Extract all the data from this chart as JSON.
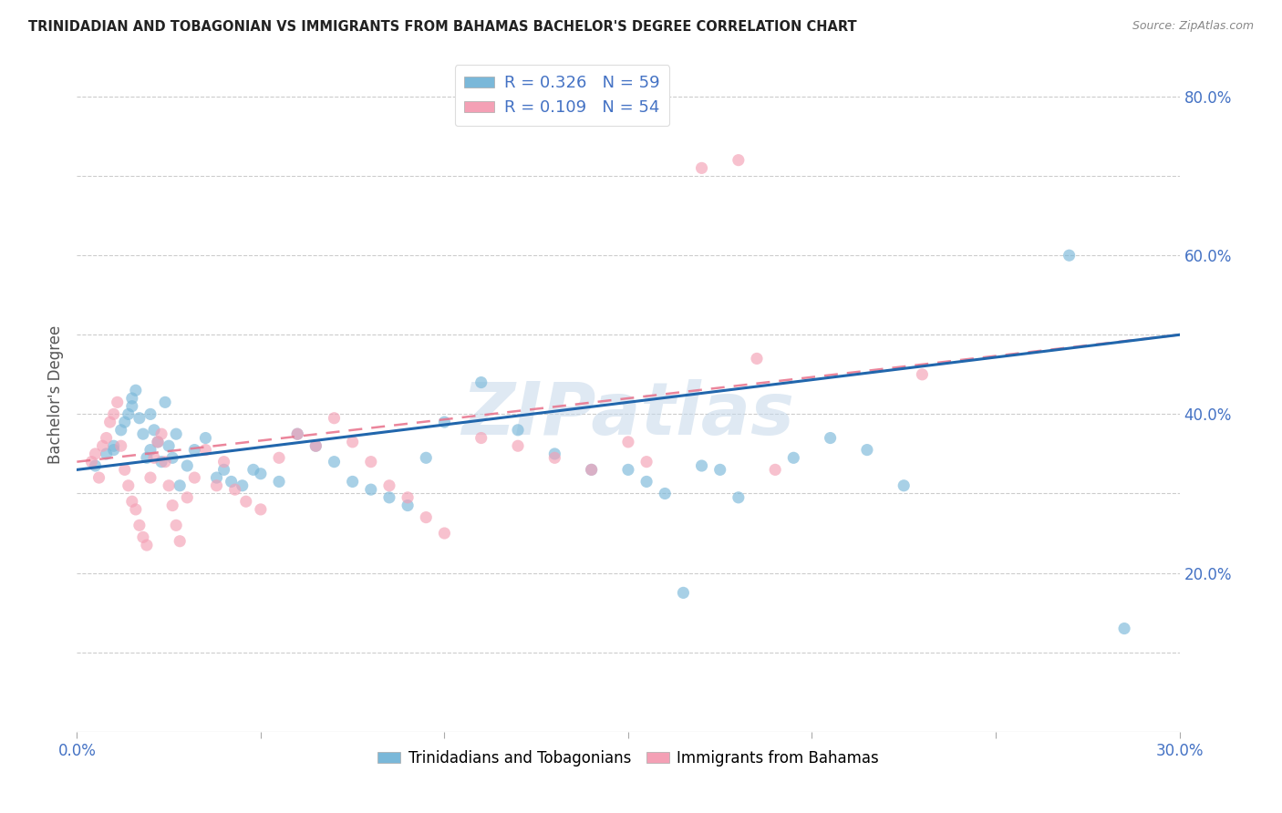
{
  "title": "TRINIDADIAN AND TOBAGONIAN VS IMMIGRANTS FROM BAHAMAS BACHELOR'S DEGREE CORRELATION CHART",
  "source": "Source: ZipAtlas.com",
  "ylabel": "Bachelor's Degree",
  "xlim": [
    0.0,
    0.3
  ],
  "ylim": [
    0.0,
    0.85
  ],
  "x_ticks": [
    0.0,
    0.05,
    0.1,
    0.15,
    0.2,
    0.25,
    0.3
  ],
  "x_tick_labels": [
    "0.0%",
    "",
    "",
    "",
    "",
    "",
    "30.0%"
  ],
  "y_ticks": [
    0.1,
    0.2,
    0.3,
    0.4,
    0.5,
    0.6,
    0.7,
    0.8
  ],
  "y_tick_labels": [
    "",
    "20.0%",
    "",
    "40.0%",
    "",
    "60.0%",
    "",
    "80.0%"
  ],
  "legend_label1": "R = 0.326   N = 59",
  "legend_label2": "R = 0.109   N = 54",
  "legend_bottom1": "Trinidadians and Tobagonians",
  "legend_bottom2": "Immigrants from Bahamas",
  "blue_color": "#7ab8d9",
  "pink_color": "#f4a0b5",
  "blue_line_color": "#2166ac",
  "pink_line_color": "#e8708a",
  "background_color": "#ffffff",
  "watermark": "ZIPatlas",
  "blue_scatter_x": [
    0.005,
    0.008,
    0.01,
    0.01,
    0.012,
    0.013,
    0.014,
    0.015,
    0.015,
    0.016,
    0.017,
    0.018,
    0.019,
    0.02,
    0.02,
    0.021,
    0.022,
    0.023,
    0.024,
    0.025,
    0.026,
    0.027,
    0.028,
    0.03,
    0.032,
    0.035,
    0.038,
    0.04,
    0.042,
    0.045,
    0.048,
    0.05,
    0.055,
    0.06,
    0.065,
    0.07,
    0.075,
    0.08,
    0.085,
    0.09,
    0.095,
    0.1,
    0.11,
    0.12,
    0.13,
    0.14,
    0.15,
    0.155,
    0.16,
    0.165,
    0.17,
    0.175,
    0.18,
    0.195,
    0.205,
    0.215,
    0.225,
    0.27,
    0.285
  ],
  "blue_scatter_y": [
    0.335,
    0.35,
    0.355,
    0.36,
    0.38,
    0.39,
    0.4,
    0.41,
    0.42,
    0.43,
    0.395,
    0.375,
    0.345,
    0.355,
    0.4,
    0.38,
    0.365,
    0.34,
    0.415,
    0.36,
    0.345,
    0.375,
    0.31,
    0.335,
    0.355,
    0.37,
    0.32,
    0.33,
    0.315,
    0.31,
    0.33,
    0.325,
    0.315,
    0.375,
    0.36,
    0.34,
    0.315,
    0.305,
    0.295,
    0.285,
    0.345,
    0.39,
    0.44,
    0.38,
    0.35,
    0.33,
    0.33,
    0.315,
    0.3,
    0.175,
    0.335,
    0.33,
    0.295,
    0.345,
    0.37,
    0.355,
    0.31,
    0.6,
    0.13
  ],
  "pink_scatter_x": [
    0.004,
    0.005,
    0.006,
    0.007,
    0.008,
    0.009,
    0.01,
    0.011,
    0.012,
    0.013,
    0.014,
    0.015,
    0.016,
    0.017,
    0.018,
    0.019,
    0.02,
    0.021,
    0.022,
    0.023,
    0.024,
    0.025,
    0.026,
    0.027,
    0.028,
    0.03,
    0.032,
    0.035,
    0.038,
    0.04,
    0.043,
    0.046,
    0.05,
    0.055,
    0.06,
    0.065,
    0.07,
    0.075,
    0.08,
    0.085,
    0.09,
    0.095,
    0.1,
    0.11,
    0.12,
    0.13,
    0.14,
    0.15,
    0.155,
    0.17,
    0.18,
    0.185,
    0.19,
    0.23
  ],
  "pink_scatter_y": [
    0.34,
    0.35,
    0.32,
    0.36,
    0.37,
    0.39,
    0.4,
    0.415,
    0.36,
    0.33,
    0.31,
    0.29,
    0.28,
    0.26,
    0.245,
    0.235,
    0.32,
    0.345,
    0.365,
    0.375,
    0.34,
    0.31,
    0.285,
    0.26,
    0.24,
    0.295,
    0.32,
    0.355,
    0.31,
    0.34,
    0.305,
    0.29,
    0.28,
    0.345,
    0.375,
    0.36,
    0.395,
    0.365,
    0.34,
    0.31,
    0.295,
    0.27,
    0.25,
    0.37,
    0.36,
    0.345,
    0.33,
    0.365,
    0.34,
    0.71,
    0.72,
    0.47,
    0.33,
    0.45
  ],
  "blue_line_x0": 0.0,
  "blue_line_y0": 0.33,
  "blue_line_x1": 0.3,
  "blue_line_y1": 0.5,
  "pink_line_x0": 0.0,
  "pink_line_y0": 0.34,
  "pink_line_x1": 0.3,
  "pink_line_y1": 0.5
}
